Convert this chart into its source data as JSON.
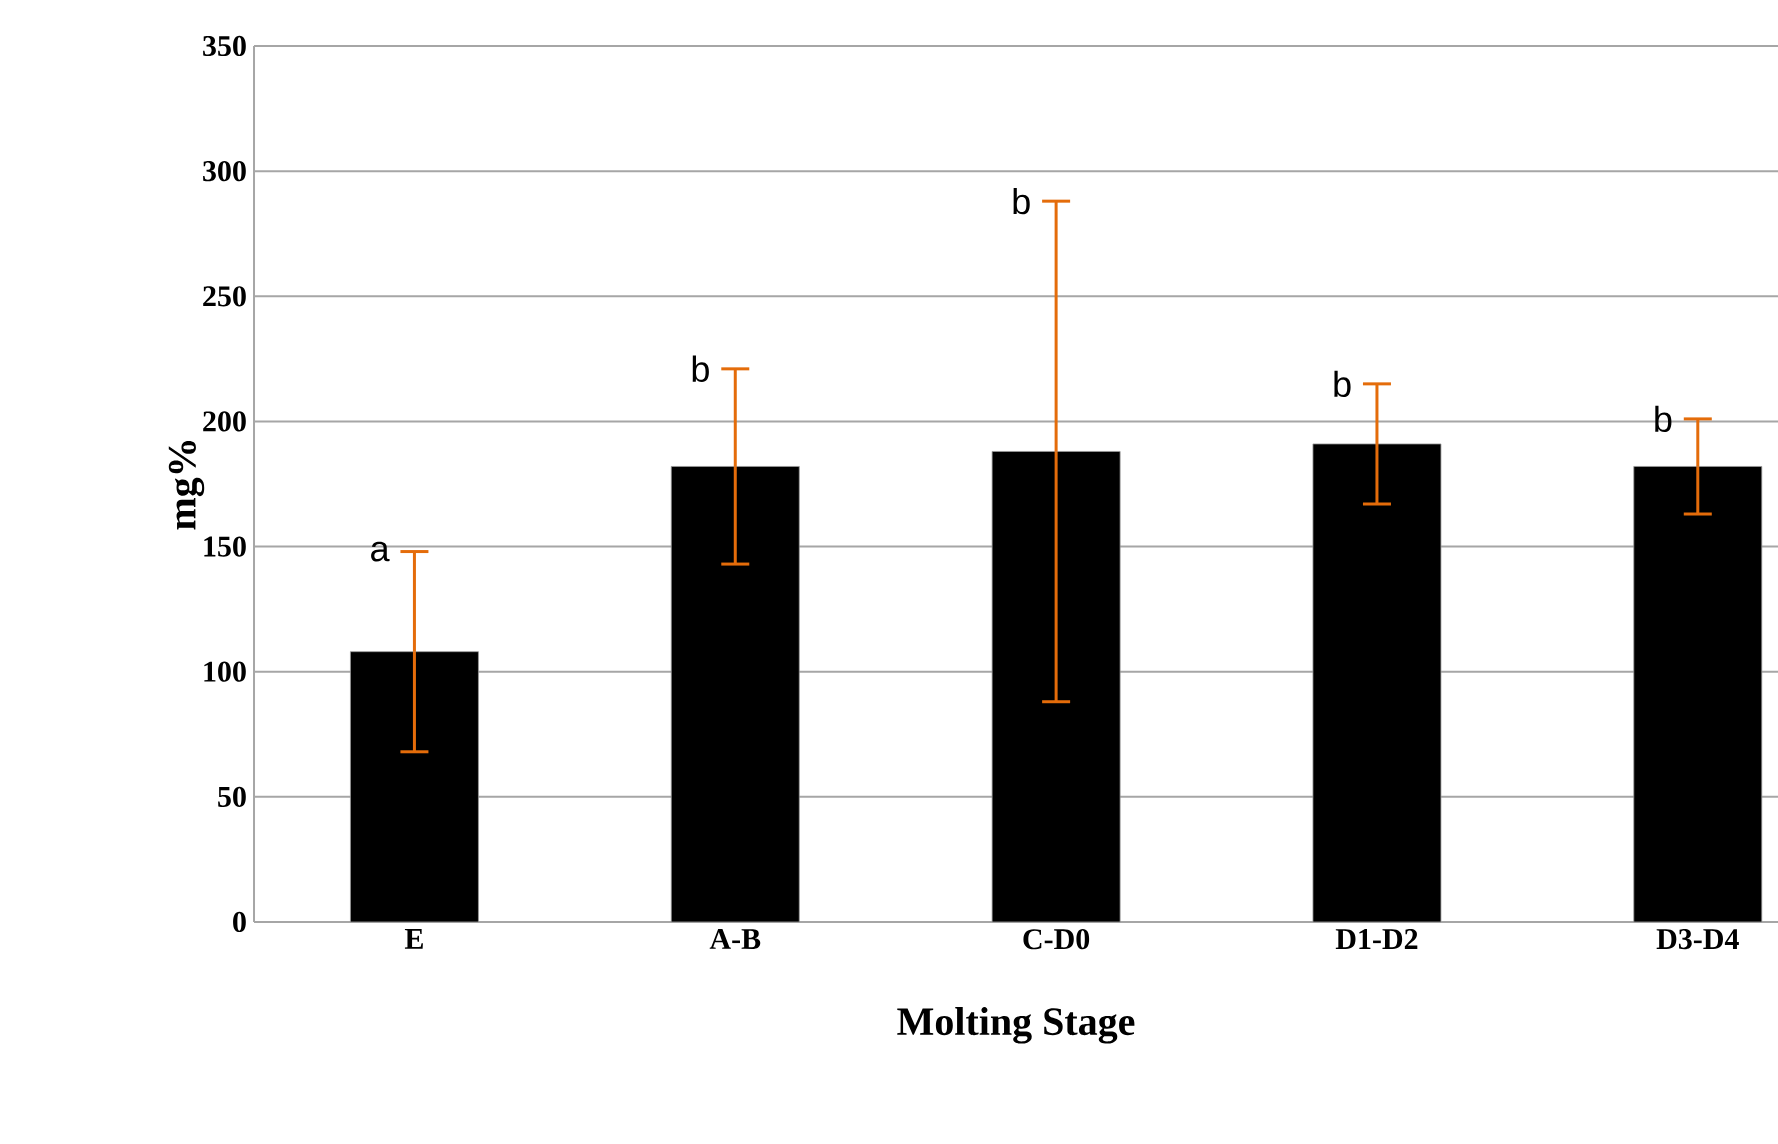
{
  "chart_data": {
    "type": "bar",
    "xlabel": "Molting Stage",
    "ylabel": "mg%",
    "categories": [
      "E",
      "A-B",
      "C-D0",
      "D1-D2",
      "D3-D4"
    ],
    "values": [
      108,
      182,
      188,
      191,
      182
    ],
    "errors": [
      40,
      39,
      100,
      24,
      19
    ],
    "color": "#000000",
    "ylim": [
      0,
      350
    ],
    "yticks": [
      0,
      50,
      100,
      150,
      200,
      250,
      300,
      350
    ],
    "grid": "y",
    "annotations": [
      {
        "text": "a",
        "x": "E",
        "y": 148
      },
      {
        "text": "b",
        "x": "A-B",
        "y": 221
      },
      {
        "text": "b",
        "x": "C-D0",
        "y": 288
      },
      {
        "text": "b",
        "x": "D1-D2",
        "y": 215
      },
      {
        "text": "b",
        "x": "D3-D4",
        "y": 201
      }
    ]
  }
}
